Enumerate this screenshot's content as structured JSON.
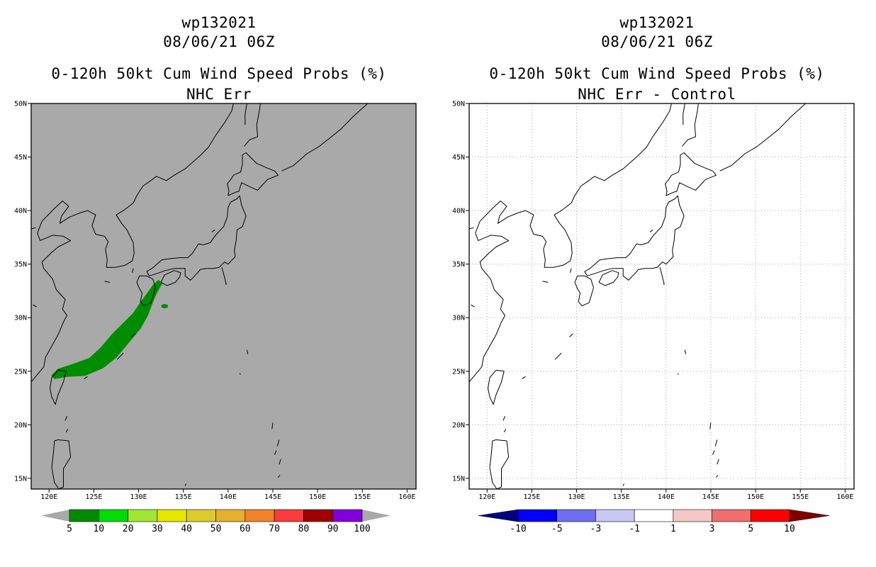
{
  "panels": [
    {
      "id": "left",
      "storm_id": "wp132021",
      "datetime": "08/06/21 06Z",
      "title": "0-120h 50kt Cum Wind Speed Probs (%)",
      "subtitle": "NHC Err",
      "map_background": "#a9a9a9",
      "colorbar": {
        "type": "sequential",
        "under_color": "#a9a9a9",
        "over_color": "#a9a9a9",
        "colors": [
          "#008c00",
          "#00dc00",
          "#a0e632",
          "#e6e600",
          "#dccd2d",
          "#e6af2d",
          "#f08228",
          "#fa3c3c",
          "#a00000",
          "#8200dc"
        ],
        "labels": [
          "5",
          "10",
          "20",
          "30",
          "40",
          "50",
          "60",
          "70",
          "80",
          "90",
          "100"
        ]
      }
    },
    {
      "id": "right",
      "storm_id": "wp132021",
      "datetime": "08/06/21 06Z",
      "title": "0-120h 50kt Cum Wind Speed Probs (%)",
      "subtitle": "NHC Err - Control",
      "map_background": "#ffffff",
      "colorbar": {
        "type": "diverging",
        "under_color": "#000080",
        "over_color": "#800000",
        "colors": [
          "#0000ff",
          "#6e6ef0",
          "#c8c8f5",
          "#ffffff",
          "#f5c8c8",
          "#f06e6e",
          "#ff0000"
        ],
        "labels": [
          "-10",
          "-5",
          "-3",
          "-1",
          "1",
          "3",
          "5",
          "10"
        ]
      }
    }
  ],
  "map": {
    "lat_labels": [
      "50N",
      "45N",
      "40N",
      "35N",
      "30N",
      "25N",
      "20N",
      "15N"
    ],
    "lon_labels": [
      "120E",
      "125E",
      "130E",
      "135E",
      "140E",
      "145E",
      "150E",
      "155E",
      "160E"
    ],
    "lat_values": [
      50,
      45,
      40,
      35,
      30,
      25,
      20,
      15
    ],
    "lon_values": [
      120,
      125,
      130,
      135,
      140,
      145,
      150,
      155,
      160
    ],
    "lon_range": [
      118,
      161
    ],
    "lat_range": [
      14,
      50
    ],
    "probability_swath": {
      "color": "#008c00",
      "probability_pct": 5,
      "polygon": [
        [
          120.3,
          24.6
        ],
        [
          121.0,
          25.2
        ],
        [
          122.5,
          25.6
        ],
        [
          124.5,
          26.2
        ],
        [
          125.8,
          27.2
        ],
        [
          127.0,
          28.4
        ],
        [
          128.2,
          29.4
        ],
        [
          129.4,
          30.4
        ],
        [
          130.2,
          31.4
        ],
        [
          131.0,
          32.3
        ],
        [
          131.6,
          33.0
        ],
        [
          132.2,
          33.5
        ],
        [
          132.6,
          33.2
        ],
        [
          132.0,
          32.3
        ],
        [
          131.5,
          31.3
        ],
        [
          131.0,
          30.2
        ],
        [
          130.2,
          29.0
        ],
        [
          129.0,
          27.8
        ],
        [
          127.5,
          26.3
        ],
        [
          126.0,
          25.3
        ],
        [
          124.0,
          24.6
        ],
        [
          122.0,
          24.5
        ],
        [
          120.6,
          24.3
        ]
      ],
      "spot": [
        131.8,
        31.6
      ]
    }
  }
}
